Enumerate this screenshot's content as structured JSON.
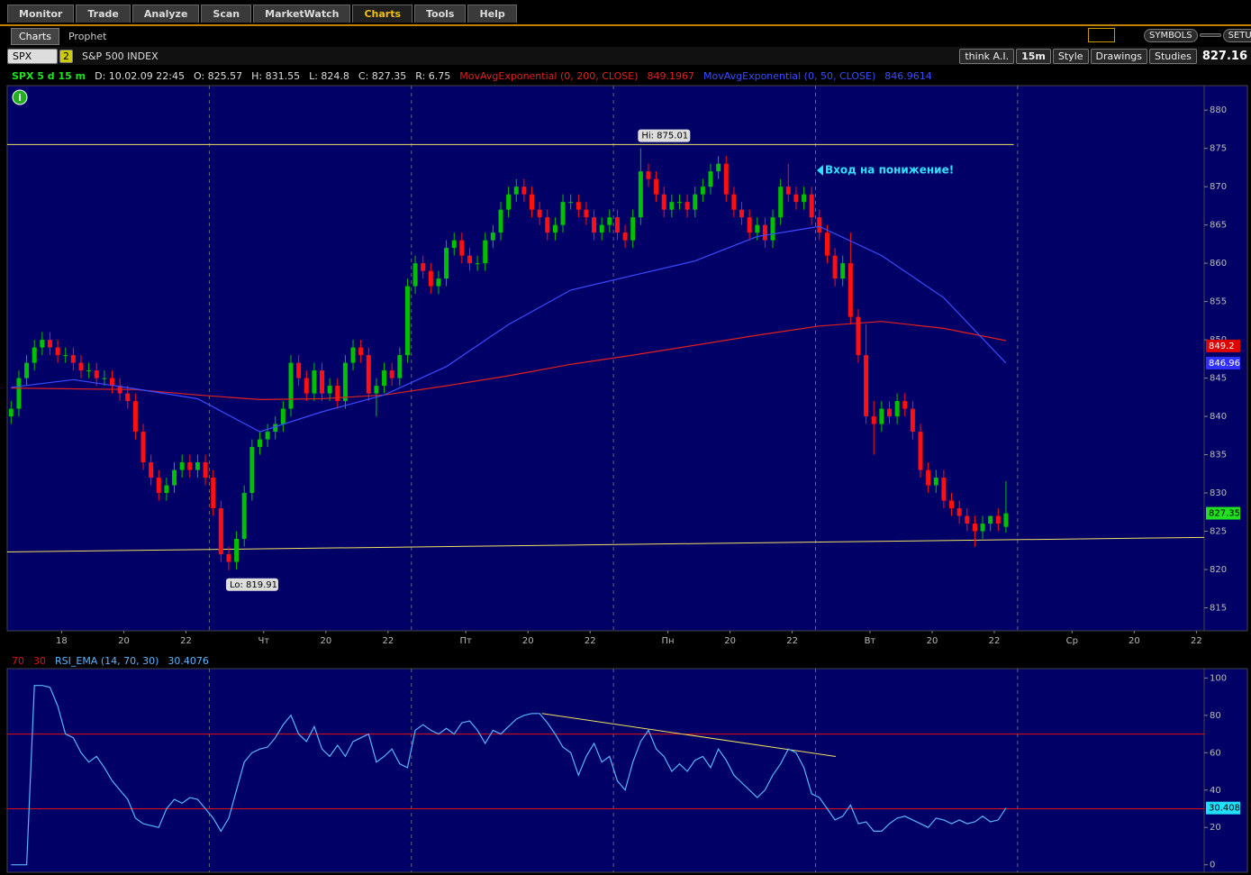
{
  "tabs": [
    "Monitor",
    "Trade",
    "Analyze",
    "Scan",
    "MarketWatch",
    "Charts",
    "Tools",
    "Help"
  ],
  "subtabs": [
    "Charts",
    "Prophet"
  ],
  "toolbar": {
    "symbol": "SPX",
    "link": "2",
    "description": "S&P 500 INDEX",
    "think": "think A.I.",
    "aggregation": "15m",
    "style": "Style",
    "drawings": "Drawings",
    "studies": "Studies",
    "last": "827.16",
    "symbols": "SYMBOLS",
    "setup": "SETUP"
  },
  "header": {
    "symbol": "SPX 5 d 15 m",
    "date": "D: 10.02.09 22:45",
    "open": "O: 825.57",
    "high": "H: 831.55",
    "low": "L: 824.8",
    "close": "C: 827.35",
    "range": "R: 6.75"
  },
  "chart_data": [
    {
      "type": "candlestick",
      "up_color": "#00c000",
      "down_color": "#ff1010",
      "candles": [
        [
          840,
          842,
          839,
          841
        ],
        [
          841,
          846,
          840,
          845
        ],
        [
          845,
          848,
          844,
          847
        ],
        [
          847,
          850,
          846,
          849
        ],
        [
          849,
          851,
          848,
          850
        ],
        [
          850,
          851,
          848,
          849
        ],
        [
          849,
          850,
          847,
          848
        ],
        [
          848,
          849,
          847,
          848
        ],
        [
          848,
          849,
          846,
          847
        ],
        [
          847,
          848,
          845,
          846
        ],
        [
          846,
          847,
          845,
          846
        ],
        [
          846,
          847,
          844,
          845
        ],
        [
          845,
          846,
          844,
          845
        ],
        [
          845,
          846,
          843,
          844
        ],
        [
          844,
          845,
          842,
          843
        ],
        [
          843,
          844,
          841,
          842
        ],
        [
          842,
          843,
          837,
          838
        ],
        [
          838,
          839,
          833,
          834
        ],
        [
          834,
          835,
          831,
          832
        ],
        [
          832,
          833,
          829,
          830
        ],
        [
          830,
          832,
          829,
          831
        ],
        [
          831,
          834,
          830,
          833
        ],
        [
          833,
          835,
          832,
          834
        ],
        [
          834,
          835,
          832,
          833
        ],
        [
          833,
          835,
          832,
          834
        ],
        [
          834,
          835,
          831,
          832
        ],
        [
          832,
          833,
          827,
          828
        ],
        [
          828,
          829,
          821,
          822
        ],
        [
          822,
          823,
          819.91,
          821
        ],
        [
          821,
          825,
          820,
          824
        ],
        [
          824,
          831,
          823,
          830
        ],
        [
          830,
          837,
          829,
          836
        ],
        [
          836,
          838,
          835,
          837
        ],
        [
          837,
          839,
          836,
          838
        ],
        [
          838,
          840,
          837,
          839
        ],
        [
          839,
          842,
          838,
          841
        ],
        [
          841,
          848,
          840,
          847
        ],
        [
          847,
          848,
          844,
          845
        ],
        [
          845,
          846,
          842,
          843
        ],
        [
          843,
          847,
          842,
          846
        ],
        [
          846,
          847,
          842,
          843
        ],
        [
          843,
          845,
          842,
          844
        ],
        [
          844,
          845,
          841,
          842
        ],
        [
          842,
          848,
          841,
          847
        ],
        [
          847,
          850,
          846,
          849
        ],
        [
          849,
          850,
          847,
          848
        ],
        [
          848,
          849,
          842,
          843
        ],
        [
          843,
          845,
          840,
          844
        ],
        [
          844,
          847,
          843,
          846
        ],
        [
          846,
          847,
          844,
          845
        ],
        [
          845,
          849,
          844,
          848
        ],
        [
          848,
          858,
          847,
          857
        ],
        [
          857,
          861,
          856,
          860
        ],
        [
          860,
          861,
          858,
          859
        ],
        [
          859,
          860,
          856,
          857
        ],
        [
          857,
          859,
          856,
          858
        ],
        [
          858,
          863,
          857,
          862
        ],
        [
          862,
          864,
          861,
          863
        ],
        [
          863,
          864,
          860,
          861
        ],
        [
          861,
          862,
          859,
          860
        ],
        [
          860,
          861,
          859,
          860
        ],
        [
          860,
          864,
          859,
          863
        ],
        [
          863,
          865,
          862,
          864
        ],
        [
          864,
          868,
          863,
          867
        ],
        [
          867,
          870,
          866,
          869
        ],
        [
          869,
          871,
          868,
          870
        ],
        [
          870,
          871,
          868,
          869
        ],
        [
          869,
          870,
          866,
          867
        ],
        [
          867,
          868,
          865,
          866
        ],
        [
          866,
          867,
          863,
          864
        ],
        [
          864,
          866,
          863,
          865
        ],
        [
          865,
          869,
          864,
          868
        ],
        [
          868,
          869,
          867,
          868
        ],
        [
          868,
          869,
          866,
          867
        ],
        [
          867,
          868,
          865,
          866
        ],
        [
          866,
          867,
          863,
          864
        ],
        [
          864,
          866,
          863,
          865
        ],
        [
          865,
          867,
          864,
          866
        ],
        [
          866,
          867,
          863,
          864
        ],
        [
          864,
          865,
          862,
          863
        ],
        [
          863,
          867,
          862,
          866
        ],
        [
          866,
          875.01,
          865,
          872
        ],
        [
          872,
          873,
          870,
          871
        ],
        [
          871,
          872,
          868,
          869
        ],
        [
          869,
          870,
          866,
          867
        ],
        [
          867,
          869,
          866,
          868
        ],
        [
          868,
          869,
          867,
          868
        ],
        [
          868,
          869,
          866,
          867
        ],
        [
          867,
          870,
          866,
          869
        ],
        [
          869,
          871,
          868,
          870
        ],
        [
          870,
          873,
          869,
          872
        ],
        [
          872,
          874,
          871,
          873
        ],
        [
          873,
          874,
          868,
          869
        ],
        [
          869,
          870,
          866,
          867
        ],
        [
          867,
          868,
          865,
          866
        ],
        [
          866,
          867,
          863,
          864
        ],
        [
          864,
          866,
          863,
          865
        ],
        [
          865,
          866,
          862,
          863
        ],
        [
          863,
          867,
          862,
          866
        ],
        [
          866,
          871,
          865,
          870
        ],
        [
          870,
          873,
          868,
          869
        ],
        [
          869,
          870,
          867,
          868
        ],
        [
          868,
          870,
          867,
          869
        ],
        [
          869,
          870,
          865,
          866
        ],
        [
          866,
          867,
          863,
          864
        ],
        [
          864,
          865,
          860,
          861
        ],
        [
          861,
          862,
          857,
          858
        ],
        [
          858,
          861,
          857,
          860
        ],
        [
          860,
          864,
          852,
          853
        ],
        [
          853,
          854,
          847,
          848
        ],
        [
          848,
          852,
          839,
          840
        ],
        [
          840,
          842,
          835,
          839
        ],
        [
          839,
          842,
          838,
          841
        ],
        [
          841,
          842,
          839,
          840
        ],
        [
          840,
          843,
          839,
          842
        ],
        [
          842,
          843,
          840,
          841
        ],
        [
          841,
          842,
          837,
          838
        ],
        [
          838,
          839,
          832,
          833
        ],
        [
          833,
          834,
          830,
          831
        ],
        [
          831,
          833,
          830,
          832
        ],
        [
          832,
          833,
          828,
          829
        ],
        [
          829,
          830,
          827,
          828
        ],
        [
          828,
          829,
          826,
          827
        ],
        [
          827,
          828,
          825,
          826
        ],
        [
          826,
          827,
          823,
          825
        ],
        [
          825,
          827,
          824,
          826
        ],
        [
          826,
          827,
          825,
          827
        ],
        [
          827,
          828,
          825,
          826
        ],
        [
          825.57,
          831.55,
          824.8,
          827.35
        ]
      ],
      "series": [
        {
          "name": "MovAvgExponential (0, 200, CLOSE)",
          "color": "#e02020",
          "last": 849.1967,
          "x": [
            0,
            8,
            16,
            24,
            32,
            40,
            48,
            56,
            64,
            72,
            80,
            88,
            96,
            104,
            112,
            120,
            128
          ],
          "values": [
            843.7,
            843.6,
            843.5,
            842.8,
            842.2,
            842.3,
            842.8,
            844.0,
            845.3,
            846.8,
            848.0,
            849.3,
            850.6,
            851.8,
            852.4,
            851.5,
            849.9
          ]
        },
        {
          "name": "MovAvgExponential (0, 50, CLOSE)",
          "color": "#3a4cff",
          "last": 846.9614,
          "x": [
            0,
            8,
            16,
            24,
            32,
            40,
            48,
            56,
            64,
            72,
            80,
            88,
            96,
            104,
            112,
            120,
            128
          ],
          "values": [
            843.8,
            844.8,
            843.6,
            842.3,
            838,
            840.6,
            842.8,
            846.5,
            852,
            856.5,
            858.4,
            860.3,
            863.5,
            864.8,
            861,
            855.5,
            846.96
          ]
        }
      ],
      "levels": [
        {
          "color": "#f0e060",
          "x": [
            -0.5,
            129
          ],
          "y": [
            875.5,
            875.5
          ]
        },
        {
          "color": "#f0e060",
          "x": [
            -0.5,
            153.5
          ],
          "y": [
            822.3,
            824.2
          ]
        }
      ],
      "badges": [
        {
          "value": 849.2,
          "color": "#e00000"
        },
        {
          "value": 846.96,
          "color": "#3030ff"
        },
        {
          "value": 827.35,
          "color": "#20e020"
        }
      ],
      "hi_label": "Hi: 875.01",
      "lo_label": "Lo: 819.91",
      "annotation": "Вход на понижение!",
      "xlim": [
        -0.5,
        153.5
      ],
      "xticks": [
        {
          "value": 6.5,
          "label": "18"
        },
        {
          "value": 14.5,
          "label": "20"
        },
        {
          "value": 22.5,
          "label": "22"
        },
        {
          "value": 32.5,
          "label": "Чт"
        },
        {
          "value": 40.5,
          "label": "20"
        },
        {
          "value": 48.5,
          "label": "22"
        },
        {
          "value": 58.5,
          "label": "Пт"
        },
        {
          "value": 66.5,
          "label": "20"
        },
        {
          "value": 74.5,
          "label": "22"
        },
        {
          "value": 84.5,
          "label": "Пн"
        },
        {
          "value": 92.5,
          "label": "20"
        },
        {
          "value": 100.5,
          "label": "22"
        },
        {
          "value": 110.5,
          "label": "Вт"
        },
        {
          "value": 118.5,
          "label": "20"
        },
        {
          "value": 126.5,
          "label": "22"
        },
        {
          "value": 136.5,
          "label": "Ср"
        },
        {
          "value": 144.5,
          "label": "20"
        },
        {
          "value": 152.5,
          "label": "22"
        }
      ],
      "ylim": [
        812,
        883.2
      ],
      "yticks": [
        815,
        820,
        825,
        830,
        835,
        840,
        845,
        850,
        855,
        860,
        865,
        870,
        875,
        880
      ]
    },
    {
      "type": "line",
      "xlim": [
        -0.5,
        153.5
      ],
      "ylim": [
        -4,
        105
      ],
      "yticks": [
        0,
        20,
        40,
        60,
        80,
        100
      ],
      "series": [
        {
          "name": "RSI_EMA (14, 70, 30)",
          "color": "#5ab4ff",
          "last": 30.4076,
          "values": [
            0,
            0,
            0,
            96,
            96,
            95,
            85,
            70,
            68,
            60,
            55,
            58,
            52,
            45,
            40,
            35,
            25,
            22,
            21,
            20,
            30,
            35,
            33,
            36,
            35,
            30,
            25,
            18,
            25,
            40,
            55,
            60,
            62,
            63,
            68,
            75,
            80,
            70,
            66,
            74,
            62,
            58,
            64,
            58,
            66,
            68,
            70,
            55,
            58,
            62,
            54,
            52,
            72,
            75,
            72,
            70,
            73,
            70,
            76,
            77,
            72,
            65,
            72,
            70,
            74,
            78,
            80,
            81,
            81,
            76,
            70,
            63,
            60,
            48,
            58,
            65,
            55,
            58,
            45,
            40,
            55,
            66,
            72,
            62,
            58,
            50,
            54,
            50,
            56,
            58,
            52,
            62,
            56,
            48,
            44,
            40,
            36,
            40,
            48,
            54,
            62,
            60,
            52,
            38,
            36,
            30,
            24,
            26,
            32,
            22,
            23,
            18,
            18,
            22,
            25,
            26,
            24,
            22,
            20,
            25,
            24,
            22,
            24,
            22,
            23,
            26,
            23,
            24,
            30.4
          ]
        }
      ],
      "levels": [
        {
          "value": 70,
          "color": "#e01010"
        },
        {
          "value": 30,
          "color": "#e01010"
        }
      ],
      "trendlines": [
        {
          "color": "#f0e060",
          "x": [
            68.3,
            106.1
          ],
          "y": [
            81,
            58
          ]
        }
      ],
      "badges": [
        {
          "value": 30.408,
          "color": "#20e0ff"
        }
      ]
    }
  ]
}
